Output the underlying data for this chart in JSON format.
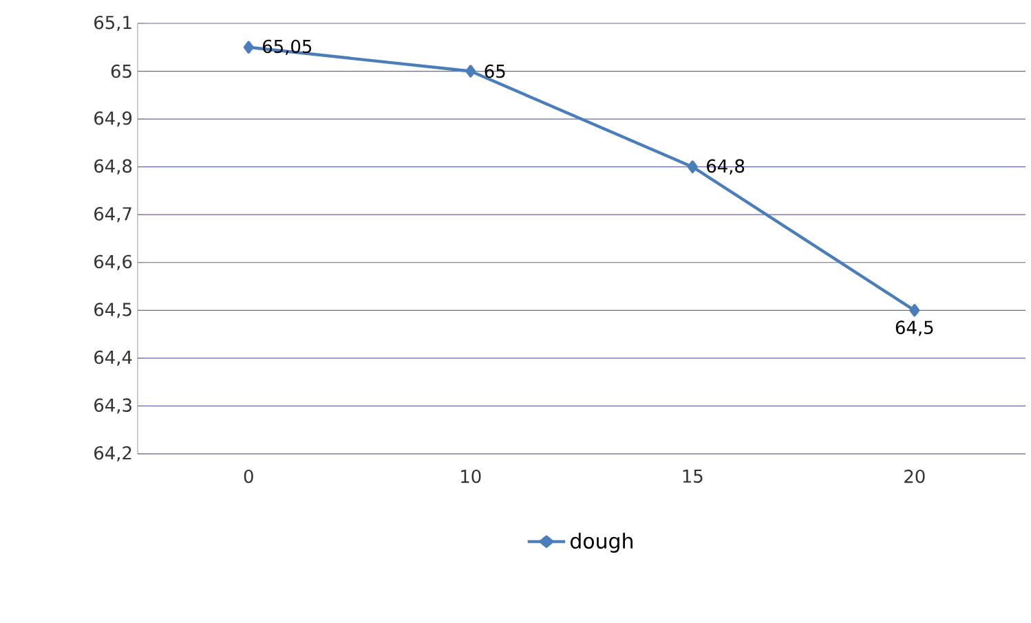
{
  "chart_data": {
    "type": "line",
    "categories": [
      "0",
      "10",
      "15",
      "20"
    ],
    "series": [
      {
        "name": "dough",
        "color": "#4a7ebb",
        "values": [
          65.05,
          65,
          64.8,
          64.5
        ],
        "value_labels": [
          "65,05",
          "65",
          "64,8",
          "64,5"
        ]
      }
    ],
    "ylim": [
      64.2,
      65.1
    ],
    "yticks": [
      {
        "value": 64.2,
        "label": "64,2"
      },
      {
        "value": 64.3,
        "label": "64,3"
      },
      {
        "value": 64.4,
        "label": "64,4"
      },
      {
        "value": 64.5,
        "label": "64,5"
      },
      {
        "value": 64.6,
        "label": "64,6"
      },
      {
        "value": 64.7,
        "label": "64,7"
      },
      {
        "value": 64.8,
        "label": "64,8"
      },
      {
        "value": 64.9,
        "label": "64,9"
      },
      {
        "value": 65.0,
        "label": "65"
      },
      {
        "value": 65.1,
        "label": "65,1"
      }
    ],
    "grid": "y",
    "legend": "bottom",
    "marker": "diamond",
    "line_style": "solid"
  }
}
